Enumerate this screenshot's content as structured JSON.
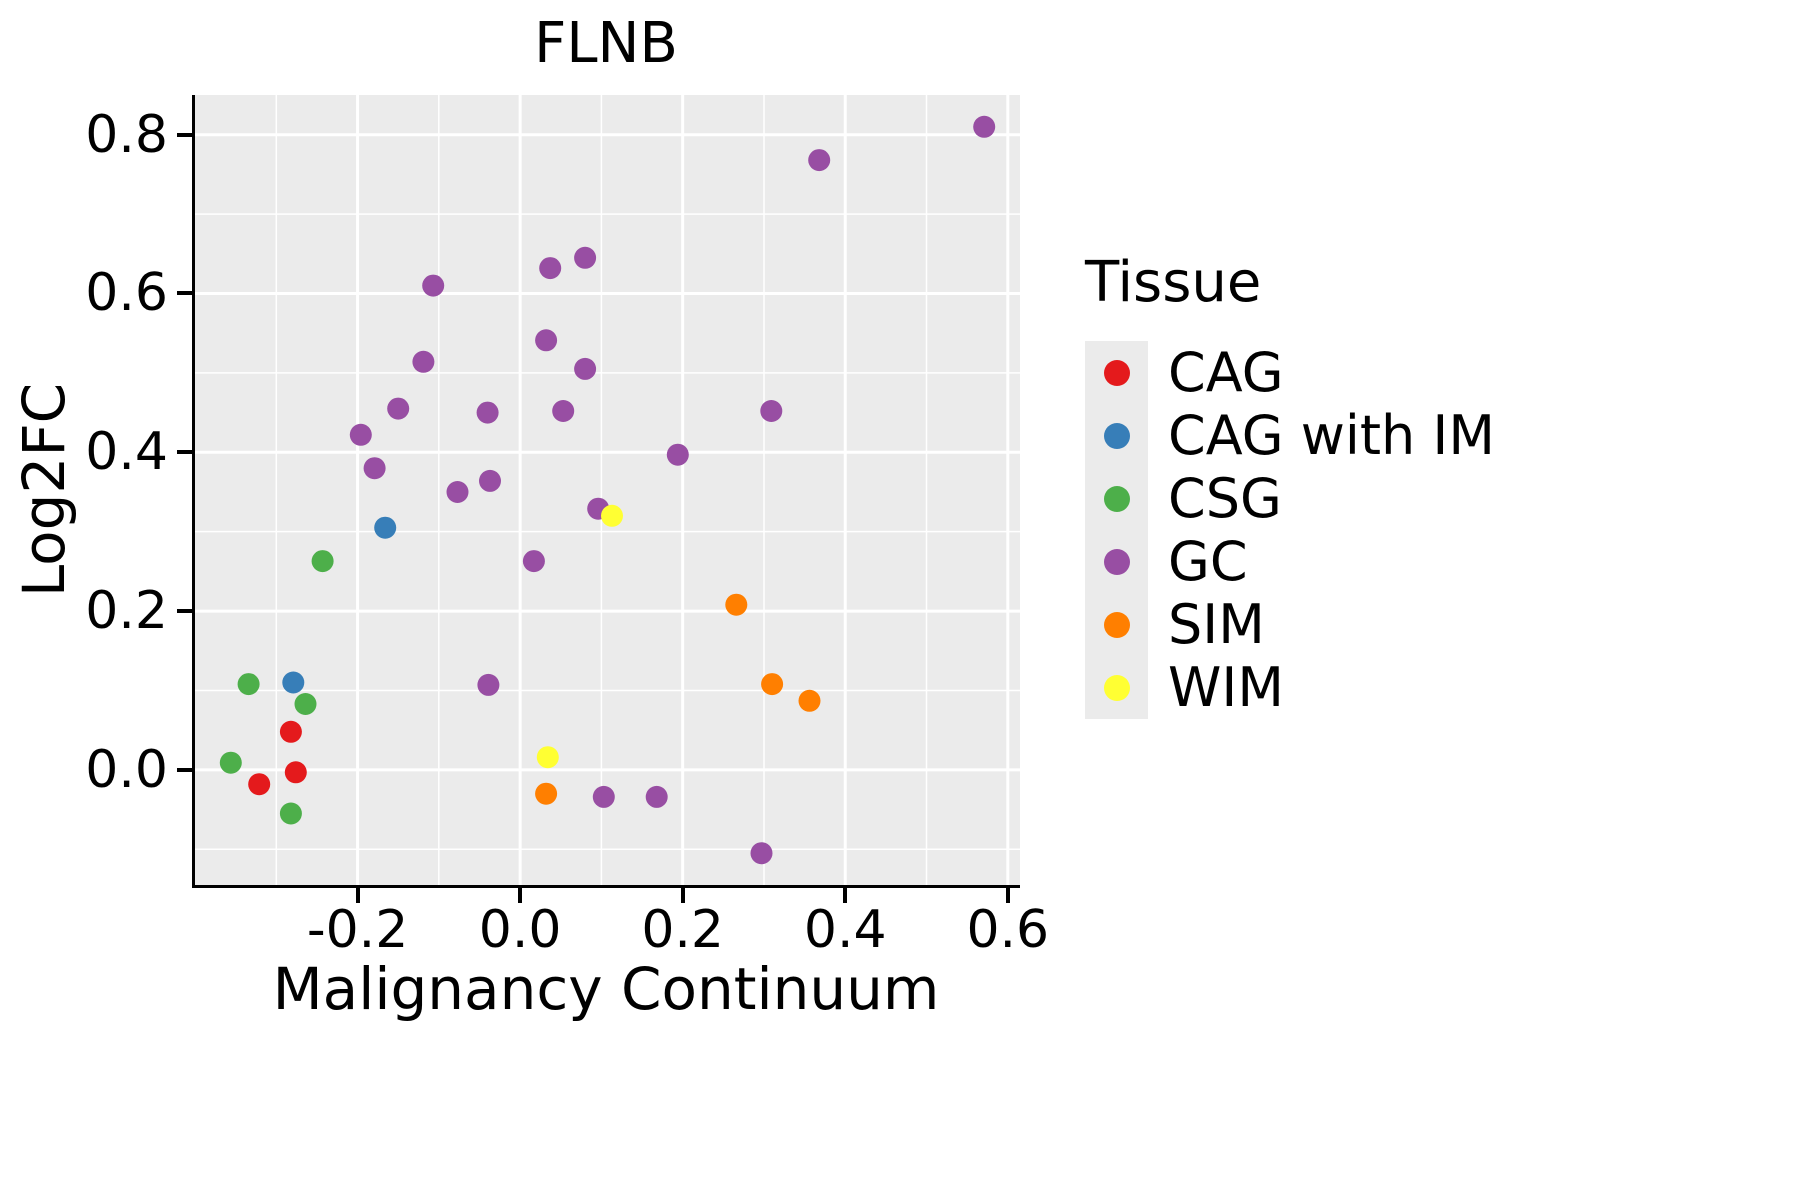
{
  "title": "FLNB",
  "legend": {
    "title": "Tissue",
    "items": [
      "CAG",
      "CAG with IM",
      "CSG",
      "GC",
      "SIM",
      "WIM"
    ]
  },
  "chart_data": {
    "type": "scatter",
    "title": "FLNB",
    "xlabel": "Malignancy Continuum",
    "ylabel": "Log2FC",
    "xlim": [
      -0.4,
      0.615
    ],
    "ylim": [
      -0.145,
      0.85
    ],
    "x_ticks": {
      "values": [
        -0.2,
        0.0,
        0.2,
        0.4,
        0.6
      ],
      "labels": [
        "-0.2",
        "0.0",
        "0.2",
        "0.4",
        "0.6"
      ]
    },
    "y_ticks": {
      "values": [
        0.0,
        0.2,
        0.4,
        0.6,
        0.8
      ],
      "labels": [
        "0.0",
        "0.2",
        "0.4",
        "0.6",
        "0.8"
      ]
    },
    "grid": true,
    "panel_background": "#EBEBEB",
    "gridline_color": "#FFFFFF",
    "legend_title": "Tissue",
    "legend_position": "right",
    "point_radius": 11,
    "series": [
      {
        "name": "CAG",
        "color": "#E41A1C",
        "points": [
          [
            -0.282,
            0.048
          ],
          [
            -0.321,
            -0.018
          ],
          [
            -0.276,
            -0.003
          ]
        ]
      },
      {
        "name": "CAG with IM",
        "color": "#377EB8",
        "points": [
          [
            -0.166,
            0.305
          ],
          [
            -0.279,
            0.11
          ]
        ]
      },
      {
        "name": "CSG",
        "color": "#4DAF4A",
        "points": [
          [
            -0.243,
            0.263
          ],
          [
            -0.334,
            0.108
          ],
          [
            -0.264,
            0.083
          ],
          [
            -0.356,
            0.009
          ],
          [
            -0.282,
            -0.055
          ]
        ]
      },
      {
        "name": "GC",
        "color": "#984EA3",
        "points": [
          [
            0.571,
            0.81
          ],
          [
            0.368,
            0.768
          ],
          [
            0.08,
            0.645
          ],
          [
            0.037,
            0.632
          ],
          [
            -0.107,
            0.61
          ],
          [
            0.032,
            0.541
          ],
          [
            -0.119,
            0.514
          ],
          [
            0.08,
            0.505
          ],
          [
            -0.15,
            0.455
          ],
          [
            -0.04,
            0.45
          ],
          [
            0.053,
            0.452
          ],
          [
            0.309,
            0.452
          ],
          [
            -0.196,
            0.422
          ],
          [
            -0.179,
            0.38
          ],
          [
            0.194,
            0.397
          ],
          [
            -0.077,
            0.35
          ],
          [
            -0.037,
            0.364
          ],
          [
            0.096,
            0.329
          ],
          [
            0.017,
            0.263
          ],
          [
            -0.039,
            0.107
          ],
          [
            0.103,
            -0.034
          ],
          [
            0.168,
            -0.034
          ],
          [
            0.297,
            -0.105
          ]
        ]
      },
      {
        "name": "SIM",
        "color": "#FF7F00",
        "points": [
          [
            0.266,
            0.208
          ],
          [
            0.31,
            0.108
          ],
          [
            0.356,
            0.087
          ],
          [
            0.032,
            -0.03
          ]
        ]
      },
      {
        "name": "WIM",
        "color": "#FFFF33",
        "points": [
          [
            0.113,
            0.32
          ],
          [
            0.034,
            0.016
          ]
        ]
      }
    ]
  }
}
